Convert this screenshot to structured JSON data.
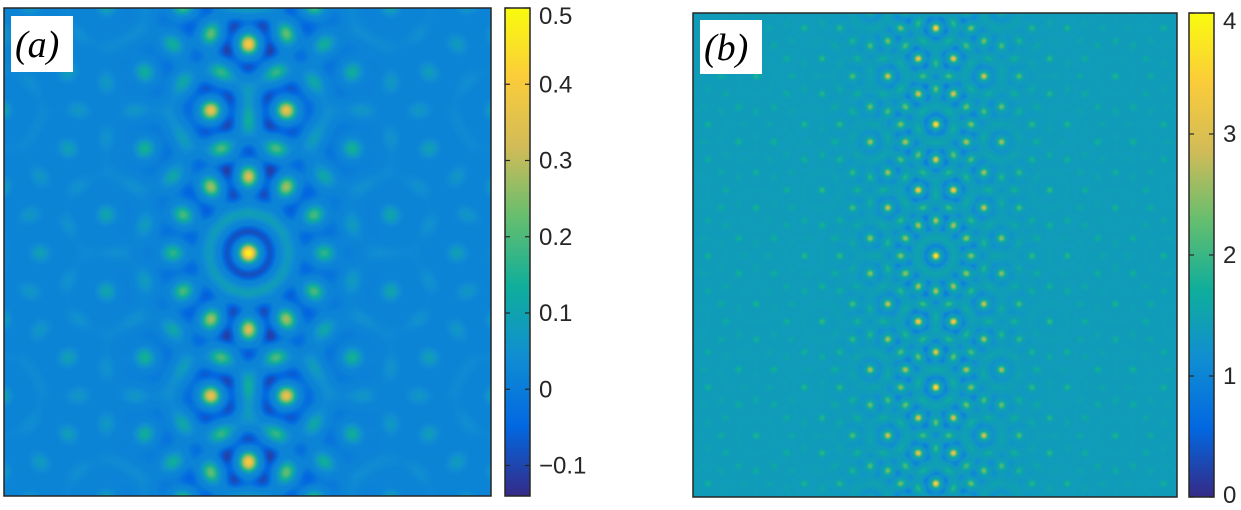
{
  "chart_data": [
    {
      "type": "heatmap",
      "panel_label": "(a)",
      "colormap": "parula",
      "colorbar": {
        "range": [
          -0.14,
          0.5
        ],
        "ticks": [
          -0.1,
          0,
          0.1,
          0.2,
          0.3,
          0.4,
          0.5
        ],
        "tick_labels": [
          "−0.1",
          "0",
          "0.1",
          "0.2",
          "0.3",
          "0.4",
          "0.5"
        ]
      },
      "background_value": 0.02,
      "peak_value": 0.5,
      "trough_value": -0.12,
      "pattern": "quasicrystalline, bright stripe along vertical centre"
    },
    {
      "type": "heatmap",
      "panel_label": "(b)",
      "colormap": "parula",
      "colorbar": {
        "range": [
          0,
          4
        ],
        "ticks": [
          0,
          1,
          2,
          3,
          4
        ],
        "tick_labels": [
          "0",
          "1",
          "2",
          "3",
          "4"
        ]
      },
      "background_value": 1.4,
      "peak_value": 4,
      "trough_value": 0.9,
      "pattern": "dense lattice of spots, brighter in central stripe"
    }
  ],
  "colors": {
    "parula_stops": [
      "#352a87",
      "#0268e1",
      "#108ed2",
      "#0fae9b",
      "#65be6e",
      "#d1bb58",
      "#fbcc3a",
      "#f9fb0e"
    ]
  }
}
